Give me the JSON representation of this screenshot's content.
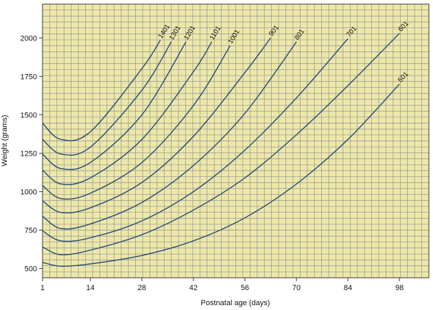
{
  "chart_data": {
    "type": "line",
    "title": "",
    "xlabel": "Postnatal age (days)",
    "ylabel": "Weight (grams)",
    "xlim": [
      1,
      106
    ],
    "ylim": [
      440,
      2220
    ],
    "x_ticks": [
      {
        "value": 1,
        "label": "1"
      },
      {
        "value": 14,
        "label": "14"
      },
      {
        "value": 28,
        "label": "28"
      },
      {
        "value": 42,
        "label": "42"
      },
      {
        "value": 56,
        "label": "56"
      },
      {
        "value": 70,
        "label": "70"
      },
      {
        "value": 84,
        "label": "84"
      },
      {
        "value": 98,
        "label": "98"
      }
    ],
    "y_ticks": [
      {
        "value": 500,
        "label": "500"
      },
      {
        "value": 750,
        "label": "750"
      },
      {
        "value": 1000,
        "label": "1000"
      },
      {
        "value": 1250,
        "label": "1250"
      },
      {
        "value": 1500,
        "label": "1500"
      },
      {
        "value": 1750,
        "label": "1750"
      },
      {
        "value": 2000,
        "label": "2000"
      }
    ],
    "grid": true,
    "colors": {
      "background": "#ede8a8",
      "grid": "#8f8f99",
      "line": "#2b4f7a",
      "border": "#333333"
    },
    "series": [
      {
        "name": "501",
        "x": [
          1,
          6,
          14,
          28,
          42,
          56,
          70,
          84,
          98
        ],
        "y": [
          540,
          515,
          530,
          585,
          680,
          830,
          1050,
          1340,
          1700
        ]
      },
      {
        "name": "601",
        "x": [
          1,
          6,
          14,
          28,
          42,
          56,
          70,
          84,
          98
        ],
        "y": [
          640,
          590,
          620,
          720,
          880,
          1090,
          1370,
          1690,
          2030
        ]
      },
      {
        "name": "701",
        "x": [
          1,
          6,
          14,
          28,
          42,
          56,
          70,
          84
        ],
        "y": [
          745,
          680,
          700,
          810,
          1000,
          1270,
          1610,
          1995
        ]
      },
      {
        "name": "801",
        "x": [
          1,
          6,
          14,
          28,
          42,
          56,
          70
        ],
        "y": [
          840,
          760,
          790,
          930,
          1170,
          1510,
          1975
        ]
      },
      {
        "name": "901",
        "x": [
          1,
          6,
          14,
          28,
          42,
          56,
          63
        ],
        "y": [
          940,
          865,
          895,
          1060,
          1360,
          1775,
          2000
        ]
      },
      {
        "name": "1001",
        "x": [
          1,
          6,
          14,
          28,
          42,
          52
        ],
        "y": [
          1040,
          955,
          990,
          1190,
          1560,
          1950
        ]
      },
      {
        "name": "1101",
        "x": [
          1,
          6,
          14,
          28,
          42,
          47
        ],
        "y": [
          1140,
          1050,
          1090,
          1340,
          1780,
          1975
        ]
      },
      {
        "name": "1201",
        "x": [
          1,
          6,
          14,
          28,
          40
        ],
        "y": [
          1245,
          1150,
          1190,
          1500,
          1975
        ]
      },
      {
        "name": "1301",
        "x": [
          1,
          6,
          14,
          28,
          36
        ],
        "y": [
          1340,
          1245,
          1290,
          1660,
          1975
        ]
      },
      {
        "name": "1401",
        "x": [
          1,
          6,
          14,
          28,
          33
        ],
        "y": [
          1445,
          1340,
          1390,
          1800,
          1985
        ]
      }
    ]
  }
}
